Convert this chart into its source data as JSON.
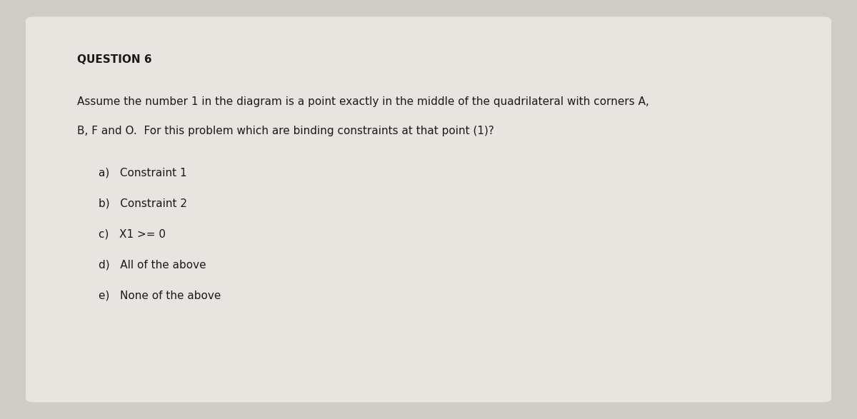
{
  "background_color": "#d0cdc8",
  "card_color": "#e8e5e0",
  "title": "QUESTION 6",
  "body_line1": "Assume the number 1 in the diagram is a point exactly in the middle of the quadrilateral with corners A,",
  "body_line2": "B, F and O.  For this problem which are binding constraints at that point (1)?",
  "options": [
    "a)   Constraint 1",
    "b)   Constraint 2",
    "c)   X1 >= 0",
    "d)   All of the above",
    "e)   None of the above"
  ],
  "title_fontsize": 11,
  "body_fontsize": 11,
  "option_fontsize": 11,
  "title_color": "#1a1a1a",
  "body_color": "#1a1a1a",
  "option_color": "#1a1a1a",
  "title_font": "DejaVu Sans",
  "body_font": "DejaVu Sans"
}
